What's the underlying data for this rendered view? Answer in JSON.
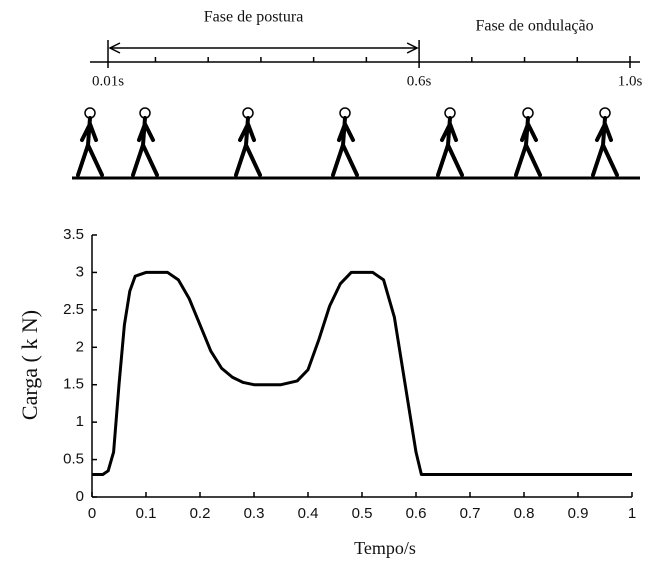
{
  "timeline": {
    "xlim": [
      0.01,
      1.0
    ],
    "ticks": [
      {
        "value": 0.01,
        "label": "0.01s"
      },
      {
        "value": 0.6,
        "label": "0.6s"
      },
      {
        "value": 1.0,
        "label": "1.0s"
      }
    ],
    "minor_ticks": [
      0.1,
      0.2,
      0.3,
      0.4,
      0.5,
      0.7,
      0.8,
      0.9
    ],
    "phases": [
      {
        "label": "Fase de postura",
        "start": 0.01,
        "end": 0.6
      },
      {
        "label": "Fase de ondulação",
        "start": 0.6,
        "end": 1.0
      }
    ]
  },
  "chart_data": {
    "type": "line",
    "y_label": "Carga ( k N)",
    "x_label": "Tempo/s",
    "x": [
      0,
      0.02,
      0.03,
      0.04,
      0.05,
      0.06,
      0.07,
      0.08,
      0.1,
      0.14,
      0.16,
      0.18,
      0.2,
      0.22,
      0.24,
      0.26,
      0.28,
      0.3,
      0.35,
      0.38,
      0.4,
      0.42,
      0.44,
      0.46,
      0.48,
      0.52,
      0.54,
      0.56,
      0.58,
      0.6,
      0.61,
      1.0
    ],
    "series": [
      {
        "name": "Carga",
        "color": "#000000",
        "values": [
          0.3,
          0.3,
          0.35,
          0.6,
          1.5,
          2.3,
          2.75,
          2.95,
          3.0,
          3.0,
          2.9,
          2.65,
          2.3,
          1.95,
          1.72,
          1.6,
          1.53,
          1.5,
          1.5,
          1.55,
          1.7,
          2.1,
          2.55,
          2.85,
          3.0,
          3.0,
          2.9,
          2.4,
          1.5,
          0.6,
          0.3,
          0.3
        ]
      }
    ],
    "xlim": [
      0,
      1
    ],
    "xticks": [
      0,
      0.1,
      0.2,
      0.3,
      0.4,
      0.5,
      0.6,
      0.7,
      0.8,
      0.9,
      1
    ],
    "ylim": [
      0,
      3.5
    ],
    "yticks": [
      0,
      0.5,
      1,
      1.5,
      2,
      2.5,
      3,
      3.5
    ]
  }
}
